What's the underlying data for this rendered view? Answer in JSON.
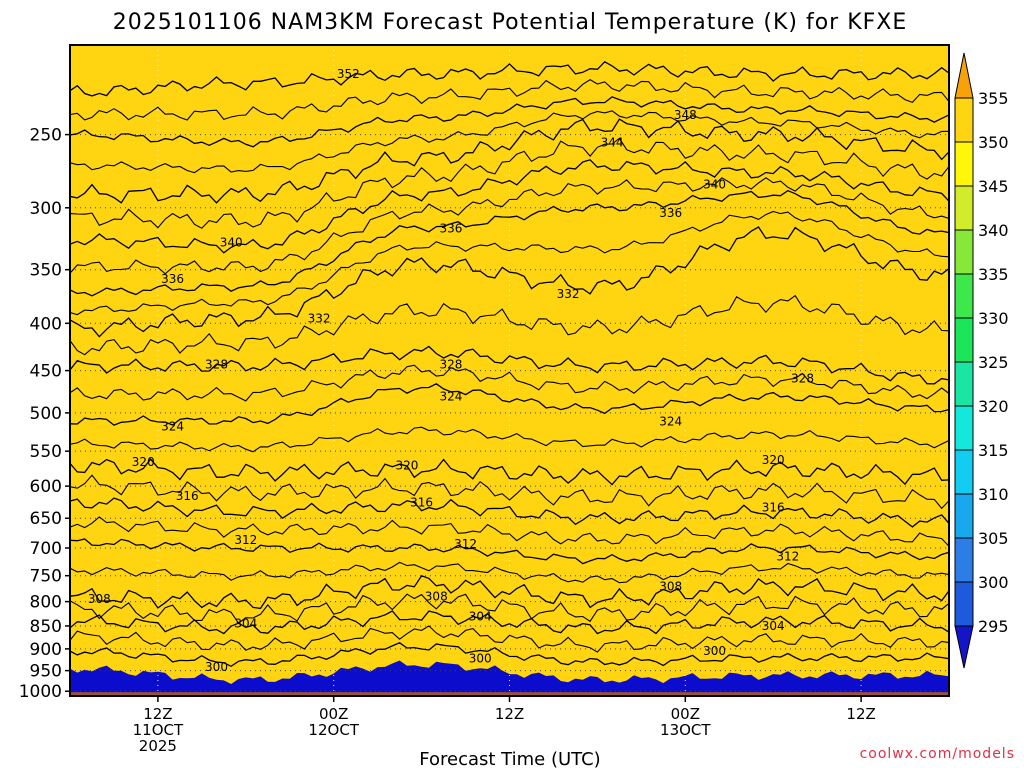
{
  "chart_data": {
    "type": "heatmap",
    "title": "2025101106 NAM3KM Forecast Potential Temperature (K) for KFXE",
    "xlabel": "Forecast Time (UTC)",
    "ylabel": "",
    "units": "K",
    "x_range_hours": [
      0,
      60
    ],
    "y_range_hPa": [
      1012,
      200
    ],
    "yticks": [
      250,
      300,
      350,
      400,
      450,
      500,
      550,
      600,
      650,
      700,
      750,
      800,
      850,
      900,
      950,
      1000
    ],
    "xticks": [
      {
        "hour": 6,
        "lines": [
          "12Z",
          "11OCT",
          "2025"
        ]
      },
      {
        "hour": 18,
        "lines": [
          "00Z",
          "12OCT"
        ]
      },
      {
        "hour": 30,
        "lines": [
          "12Z"
        ]
      },
      {
        "hour": 42,
        "lines": [
          "00Z",
          "13OCT"
        ]
      },
      {
        "hour": 54,
        "lines": [
          "12Z"
        ]
      }
    ],
    "colorbar": {
      "levels": [
        295,
        300,
        305,
        310,
        315,
        320,
        325,
        330,
        335,
        340,
        345,
        350,
        355
      ],
      "colors": [
        "#1414c8",
        "#1e5adc",
        "#2c7ee6",
        "#18a8ee",
        "#12ccf2",
        "#12e8dc",
        "#1ae6a4",
        "#1be65a",
        "#3ee84a",
        "#88e83a",
        "#d2ec2a",
        "#fff60a",
        "#ffd410",
        "#f8a20a"
      ]
    },
    "contour_interval": 4,
    "contours": [
      {
        "level": 300,
        "label": "300",
        "pressure": [
          905,
          930,
          895,
          930,
          920,
          920
        ]
      },
      {
        "level": 304,
        "label": "304",
        "pressure": [
          840,
          855,
          830,
          855,
          840,
          850
        ]
      },
      {
        "level": 308,
        "label": "308",
        "pressure": [
          790,
          800,
          765,
          795,
          770,
          785
        ]
      },
      {
        "level": 312,
        "label": "312",
        "pressure": [
          690,
          700,
          700,
          720,
          700,
          715
        ]
      },
      {
        "level": 316,
        "label": "316",
        "pressure": [
          625,
          640,
          630,
          650,
          640,
          655
        ]
      },
      {
        "level": 320,
        "label": "320",
        "pressure": [
          570,
          580,
          575,
          585,
          575,
          585
        ]
      },
      {
        "level": 324,
        "label": "324",
        "pressure": [
          510,
          510,
          470,
          495,
          480,
          495
        ]
      },
      {
        "level": 328,
        "label": "328",
        "pressure": [
          445,
          445,
          430,
          445,
          440,
          460
        ]
      },
      {
        "level": 332,
        "label": "332",
        "pressure": [
          405,
          395,
          345,
          365,
          320,
          355
        ]
      },
      {
        "level": 336,
        "label": "336",
        "pressure": [
          370,
          365,
          315,
          300,
          290,
          320
        ]
      },
      {
        "level": 340,
        "label": "340",
        "pressure": [
          325,
          330,
          290,
          270,
          275,
          290
        ]
      },
      {
        "level": 344,
        "label": "344",
        "pressure": [
          290,
          290,
          265,
          245,
          250,
          260
        ]
      },
      {
        "level": 348,
        "label": "348",
        "pressure": [
          250,
          255,
          240,
          230,
          235,
          240
        ]
      },
      {
        "level": 352,
        "label": "352",
        "pressure": [
          225,
          220,
          215,
          212,
          215,
          215
        ]
      }
    ],
    "contour_x_hours": [
      0,
      12,
      24,
      36,
      48,
      60
    ],
    "labeled_points": [
      {
        "text": "352",
        "hour": 19,
        "p": 215
      },
      {
        "text": "348",
        "hour": 42,
        "p": 238
      },
      {
        "text": "344",
        "hour": 37,
        "p": 255
      },
      {
        "text": "340",
        "hour": 44,
        "p": 283
      },
      {
        "text": "340",
        "hour": 11,
        "p": 327
      },
      {
        "text": "336",
        "hour": 26,
        "p": 316
      },
      {
        "text": "336",
        "hour": 41,
        "p": 304
      },
      {
        "text": "336",
        "hour": 7,
        "p": 358
      },
      {
        "text": "332",
        "hour": 17,
        "p": 395
      },
      {
        "text": "332",
        "hour": 34,
        "p": 372
      },
      {
        "text": "328",
        "hour": 10,
        "p": 443
      },
      {
        "text": "328",
        "hour": 26,
        "p": 443
      },
      {
        "text": "328",
        "hour": 50,
        "p": 459
      },
      {
        "text": "324",
        "hour": 26,
        "p": 480
      },
      {
        "text": "324",
        "hour": 7,
        "p": 517
      },
      {
        "text": "324",
        "hour": 41,
        "p": 511
      },
      {
        "text": "320",
        "hour": 5,
        "p": 565
      },
      {
        "text": "320",
        "hour": 23,
        "p": 570
      },
      {
        "text": "320",
        "hour": 48,
        "p": 562
      },
      {
        "text": "316",
        "hour": 8,
        "p": 615
      },
      {
        "text": "316",
        "hour": 24,
        "p": 625
      },
      {
        "text": "316",
        "hour": 48,
        "p": 633
      },
      {
        "text": "312",
        "hour": 12,
        "p": 686
      },
      {
        "text": "312",
        "hour": 27,
        "p": 693
      },
      {
        "text": "312",
        "hour": 49,
        "p": 715
      },
      {
        "text": "308",
        "hour": 2,
        "p": 795
      },
      {
        "text": "308",
        "hour": 25,
        "p": 790
      },
      {
        "text": "308",
        "hour": 41,
        "p": 770
      },
      {
        "text": "304",
        "hour": 12,
        "p": 845
      },
      {
        "text": "304",
        "hour": 28,
        "p": 830
      },
      {
        "text": "304",
        "hour": 48,
        "p": 850
      },
      {
        "text": "300",
        "hour": 10,
        "p": 942
      },
      {
        "text": "300",
        "hour": 28,
        "p": 922
      },
      {
        "text": "300",
        "hour": 44,
        "p": 905
      }
    ]
  },
  "credit": "coolwx.com/models",
  "colors": {
    "ground": "#a0522d",
    "grid": "#444444"
  }
}
